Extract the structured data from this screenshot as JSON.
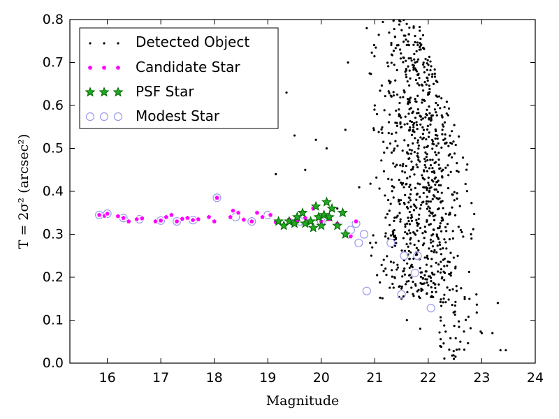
{
  "chart_data": {
    "type": "scatter",
    "xlabel": "Magnitude",
    "ylabel": "T = 2σ² (arcsec²)",
    "xlim": [
      15.3,
      24.0
    ],
    "ylim": [
      0.0,
      0.8
    ],
    "xticks": [
      "16",
      "17",
      "18",
      "19",
      "20",
      "21",
      "22",
      "23",
      "24"
    ],
    "yticks": [
      "0.0",
      "0.1",
      "0.2",
      "0.3",
      "0.4",
      "0.5",
      "0.6",
      "0.7",
      "0.8"
    ],
    "grid": false,
    "legend_position": "top-left",
    "colors": {
      "detected": "#000000",
      "candidate_fill": "#ff00ff",
      "candidate_edge": "#ffffff",
      "psf_fill": "#22aa22",
      "psf_edge": "#006600",
      "modest_edge": "#9999ee"
    },
    "series": [
      {
        "name": "Detected Object",
        "marker": "dot",
        "count": 900,
        "x_range": [
          19.1,
          23.5
        ],
        "y_range": [
          0.0,
          0.8
        ],
        "points": [
          [
            19.15,
            0.44
          ],
          [
            19.35,
            0.63
          ],
          [
            19.5,
            0.53
          ],
          [
            19.7,
            0.45
          ],
          [
            19.9,
            0.52
          ],
          [
            20.1,
            0.5
          ],
          [
            20.3,
            0.36
          ],
          [
            20.5,
            0.7
          ],
          [
            20.85,
            0.78
          ],
          [
            21.0,
            0.6
          ],
          [
            21.2,
            0.22
          ],
          [
            21.5,
            0.55
          ],
          [
            21.6,
            0.1
          ],
          [
            21.8,
            0.32
          ],
          [
            21.85,
            0.08
          ],
          [
            22.0,
            0.42
          ],
          [
            22.1,
            0.65
          ],
          [
            22.2,
            0.36
          ],
          [
            22.4,
            0.17
          ],
          [
            22.5,
            0.12
          ],
          [
            22.6,
            0.05
          ],
          [
            22.8,
            0.3
          ],
          [
            22.9,
            0.16
          ],
          [
            23.0,
            0.07
          ],
          [
            23.2,
            0.07
          ],
          [
            23.3,
            0.14
          ],
          [
            23.35,
            0.03
          ],
          [
            23.45,
            0.03
          ]
        ]
      },
      {
        "name": "Candidate Star",
        "marker": "pentagon",
        "points": [
          [
            15.85,
            0.345
          ],
          [
            15.95,
            0.343
          ],
          [
            16.0,
            0.348
          ],
          [
            16.2,
            0.342
          ],
          [
            16.3,
            0.338
          ],
          [
            16.4,
            0.33
          ],
          [
            16.55,
            0.335
          ],
          [
            16.65,
            0.337
          ],
          [
            16.9,
            0.33
          ],
          [
            17.0,
            0.332
          ],
          [
            17.1,
            0.34
          ],
          [
            17.2,
            0.345
          ],
          [
            17.3,
            0.33
          ],
          [
            17.4,
            0.336
          ],
          [
            17.5,
            0.338
          ],
          [
            17.6,
            0.333
          ],
          [
            17.7,
            0.335
          ],
          [
            17.9,
            0.34
          ],
          [
            18.0,
            0.33
          ],
          [
            18.05,
            0.385
          ],
          [
            18.3,
            0.34
          ],
          [
            18.35,
            0.355
          ],
          [
            18.45,
            0.35
          ],
          [
            18.55,
            0.334
          ],
          [
            18.7,
            0.33
          ],
          [
            18.8,
            0.35
          ],
          [
            18.9,
            0.34
          ],
          [
            19.05,
            0.345
          ],
          [
            19.15,
            0.328
          ],
          [
            19.4,
            0.335
          ],
          [
            19.55,
            0.33
          ],
          [
            19.7,
            0.338
          ],
          [
            19.85,
            0.36
          ],
          [
            20.0,
            0.33
          ],
          [
            20.15,
            0.335
          ],
          [
            20.3,
            0.325
          ],
          [
            20.55,
            0.295
          ],
          [
            20.65,
            0.33
          ]
        ]
      },
      {
        "name": "PSF Star",
        "marker": "star",
        "points": [
          [
            19.2,
            0.33
          ],
          [
            19.3,
            0.32
          ],
          [
            19.4,
            0.33
          ],
          [
            19.5,
            0.325
          ],
          [
            19.55,
            0.34
          ],
          [
            19.65,
            0.35
          ],
          [
            19.7,
            0.325
          ],
          [
            19.8,
            0.33
          ],
          [
            19.85,
            0.315
          ],
          [
            19.9,
            0.365
          ],
          [
            19.95,
            0.34
          ],
          [
            20.0,
            0.32
          ],
          [
            20.05,
            0.345
          ],
          [
            20.1,
            0.375
          ],
          [
            20.15,
            0.34
          ],
          [
            20.2,
            0.36
          ],
          [
            20.3,
            0.32
          ],
          [
            20.4,
            0.35
          ],
          [
            20.45,
            0.3
          ]
        ]
      },
      {
        "name": "Modest Star",
        "marker": "ring",
        "points": [
          [
            15.85,
            0.345
          ],
          [
            16.0,
            0.348
          ],
          [
            16.3,
            0.338
          ],
          [
            16.6,
            0.335
          ],
          [
            17.0,
            0.332
          ],
          [
            17.3,
            0.33
          ],
          [
            17.6,
            0.333
          ],
          [
            18.05,
            0.385
          ],
          [
            18.4,
            0.34
          ],
          [
            18.7,
            0.33
          ],
          [
            19.0,
            0.345
          ],
          [
            19.6,
            0.33
          ],
          [
            20.0,
            0.33
          ],
          [
            20.55,
            0.31
          ],
          [
            20.65,
            0.325
          ],
          [
            20.7,
            0.28
          ],
          [
            20.8,
            0.3
          ],
          [
            20.85,
            0.168
          ],
          [
            21.3,
            0.28
          ],
          [
            21.5,
            0.16
          ],
          [
            21.55,
            0.25
          ],
          [
            21.75,
            0.21
          ],
          [
            21.8,
            0.25
          ],
          [
            22.05,
            0.128
          ]
        ]
      }
    ]
  }
}
